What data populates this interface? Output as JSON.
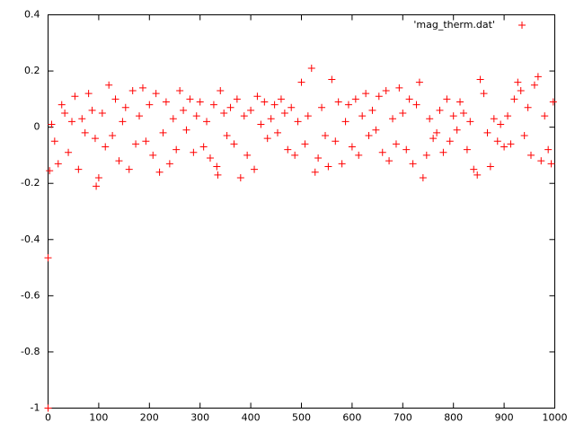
{
  "chart_data": {
    "type": "scatter",
    "x": [
      0,
      0,
      3,
      7,
      13,
      20,
      27,
      33,
      40,
      47,
      53,
      60,
      67,
      73,
      80,
      87,
      93,
      95,
      100,
      107,
      113,
      120,
      127,
      133,
      140,
      147,
      153,
      160,
      167,
      173,
      180,
      187,
      193,
      200,
      207,
      213,
      220,
      227,
      233,
      240,
      247,
      253,
      260,
      267,
      273,
      280,
      287,
      293,
      300,
      307,
      313,
      320,
      327,
      333,
      335,
      340,
      347,
      353,
      360,
      367,
      373,
      380,
      387,
      393,
      400,
      407,
      413,
      420,
      427,
      433,
      440,
      447,
      453,
      460,
      467,
      473,
      480,
      487,
      493,
      500,
      507,
      513,
      520,
      527,
      533,
      540,
      547,
      553,
      560,
      567,
      573,
      580,
      587,
      593,
      600,
      607,
      613,
      620,
      627,
      633,
      640,
      647,
      653,
      660,
      667,
      673,
      680,
      687,
      693,
      700,
      707,
      713,
      720,
      727,
      733,
      740,
      747,
      753,
      760,
      767,
      773,
      780,
      787,
      793,
      800,
      807,
      813,
      820,
      827,
      833,
      840,
      847,
      853,
      860,
      867,
      873,
      880,
      887,
      893,
      900,
      907,
      913,
      920,
      927,
      933,
      940,
      947,
      953,
      960,
      967,
      973,
      980,
      987,
      993,
      997
    ],
    "series": [
      {
        "name": "'mag_therm.dat'",
        "color": "#ff0000",
        "values": [
          -1,
          -0.465,
          -0.155,
          0.01,
          -0.05,
          -0.13,
          0.08,
          0.05,
          -0.09,
          0.02,
          0.11,
          -0.15,
          0.03,
          -0.02,
          0.12,
          0.06,
          -0.04,
          -0.21,
          -0.18,
          0.05,
          -0.07,
          0.15,
          -0.03,
          0.1,
          -0.12,
          0.02,
          0.07,
          -0.15,
          0.13,
          -0.06,
          0.04,
          0.14,
          -0.05,
          0.08,
          -0.1,
          0.12,
          -0.16,
          -0.02,
          0.09,
          -0.13,
          0.03,
          -0.08,
          0.13,
          0.06,
          -0.01,
          0.1,
          -0.09,
          0.04,
          0.09,
          -0.07,
          0.02,
          -0.11,
          0.08,
          -0.14,
          -0.17,
          0.13,
          0.05,
          -0.03,
          0.07,
          -0.06,
          0.1,
          -0.18,
          0.04,
          -0.1,
          0.06,
          -0.15,
          0.11,
          0.01,
          0.09,
          -0.04,
          0.03,
          0.08,
          -0.02,
          0.1,
          0.05,
          -0.08,
          0.07,
          -0.1,
          0.02,
          0.16,
          -0.06,
          0.04,
          0.21,
          -0.16,
          -0.11,
          0.07,
          -0.03,
          -0.14,
          0.17,
          -0.05,
          0.09,
          -0.13,
          0.02,
          0.08,
          -0.07,
          0.1,
          -0.1,
          0.04,
          0.12,
          -0.03,
          0.06,
          -0.01,
          0.11,
          -0.09,
          0.13,
          -0.12,
          0.03,
          -0.06,
          0.14,
          0.05,
          -0.08,
          0.1,
          -0.13,
          0.08,
          0.16,
          -0.18,
          -0.1,
          0.03,
          -0.04,
          -0.02,
          0.06,
          -0.09,
          0.1,
          -0.05,
          0.04,
          -0.01,
          0.09,
          0.05,
          -0.08,
          0.02,
          -0.15,
          -0.17,
          0.17,
          0.12,
          -0.02,
          -0.14,
          0.03,
          -0.05,
          0.01,
          -0.07,
          0.04,
          -0.06,
          0.1,
          0.16,
          0.13,
          -0.03,
          0.07,
          -0.1,
          0.15,
          0.18,
          -0.12,
          0.04,
          -0.08,
          -0.13,
          0.09
        ]
      }
    ],
    "xlim": [
      0,
      1000
    ],
    "xticks": [
      0,
      100,
      200,
      300,
      400,
      500,
      600,
      700,
      800,
      900,
      1000
    ],
    "ylim": [
      -1,
      0.4
    ],
    "yticks": [
      -1,
      -0.8,
      -0.6,
      -0.4,
      -0.2,
      0,
      0.2,
      0.4
    ],
    "legend": "top-right"
  }
}
